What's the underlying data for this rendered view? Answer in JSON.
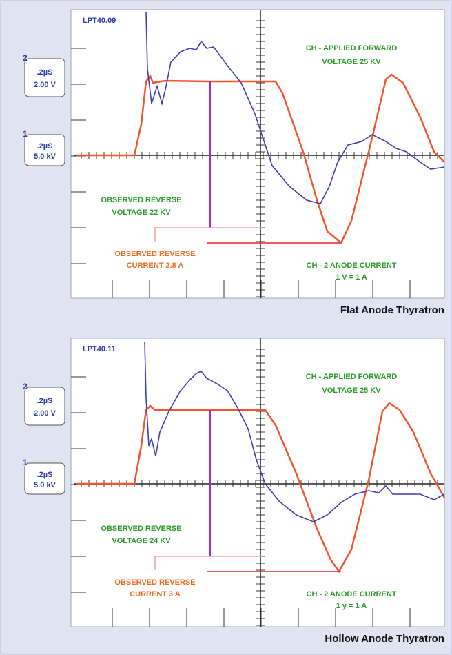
{
  "panels": [
    {
      "id": "LPT40.09",
      "channel_boxes": [
        {
          "number": "2",
          "timebase": ".2µS",
          "scale": "2.00 V"
        },
        {
          "number": "1",
          "timebase": ".2µS",
          "scale": "5.0 kV"
        }
      ],
      "annotations": [
        {
          "lines": [
            "CH - APPLIED FORWARD",
            "VOLTAGE 25 KV"
          ]
        },
        {
          "lines": [
            "OBSERVED REVERSE",
            "VOLTAGE 22 KV"
          ]
        },
        {
          "lines": [
            "OBSERVED REVERSE",
            "CURRENT 2.8 A"
          ]
        },
        {
          "lines": [
            "CH - 2 ANODE CURRENT",
            "1 V = 1 A"
          ]
        }
      ],
      "caption": "Flat Anode Thyratron"
    },
    {
      "id": "LPT40.11",
      "channel_boxes": [
        {
          "number": "2",
          "timebase": ".2µS",
          "scale": "2.00 V"
        },
        {
          "number": "1",
          "timebase": ".2µS",
          "scale": "5.0 kV"
        }
      ],
      "annotations": [
        {
          "lines": [
            "CH - APPLIED FORWARD",
            "VOLTAGE 25 KV"
          ]
        },
        {
          "lines": [
            "OBSERVED REVERSE",
            "VOLTAGE 24 KV"
          ]
        },
        {
          "lines": [
            "OBSERVED REVERSE",
            "CURRENT 3 A"
          ]
        },
        {
          "lines": [
            "CH - 2 ANODE CURRENT",
            "1 y = 1 A"
          ]
        }
      ],
      "caption": "Hollow Anode Thyratron"
    }
  ]
}
